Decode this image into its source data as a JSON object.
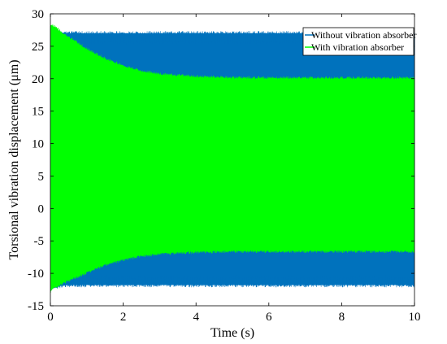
{
  "chart_data": {
    "type": "area",
    "xlabel": "Time (s)",
    "ylabel": "Torsional vibration displacement (μm)",
    "xlim": [
      0,
      10
    ],
    "ylim": [
      -15,
      30
    ],
    "x_ticks": [
      "0",
      "2",
      "4",
      "6",
      "8",
      "10"
    ],
    "y_ticks": [
      "-15",
      "-10",
      "-5",
      "0",
      "5",
      "10",
      "15",
      "20",
      "25",
      "30"
    ],
    "legend_position": "top-right",
    "series": [
      {
        "name": "Without vibration absorber",
        "color": "#0072BD",
        "envelope_x": [
          0,
          0.2,
          0.5,
          1,
          2,
          4,
          6,
          8,
          10
        ],
        "upper": [
          28,
          27.2,
          27,
          27,
          27,
          27,
          27,
          27,
          27
        ],
        "lower": [
          -12.5,
          -12,
          -11.8,
          -11.8,
          -11.8,
          -11.8,
          -11.8,
          -11.8,
          -11.8
        ]
      },
      {
        "name": "With vibration absorber",
        "color": "#00FF00",
        "envelope_x": [
          0,
          0.1,
          0.5,
          1,
          1.5,
          2,
          2.5,
          3,
          4,
          5,
          6,
          8,
          10
        ],
        "upper": [
          28.3,
          28,
          26.3,
          24.5,
          23,
          21.9,
          21.1,
          20.6,
          20.2,
          20.05,
          20,
          20,
          20
        ],
        "lower": [
          -12.7,
          -12.2,
          -11,
          -9.8,
          -8.6,
          -7.8,
          -7.2,
          -6.9,
          -6.6,
          -6.5,
          -6.5,
          -6.5,
          -6.5
        ]
      }
    ]
  }
}
